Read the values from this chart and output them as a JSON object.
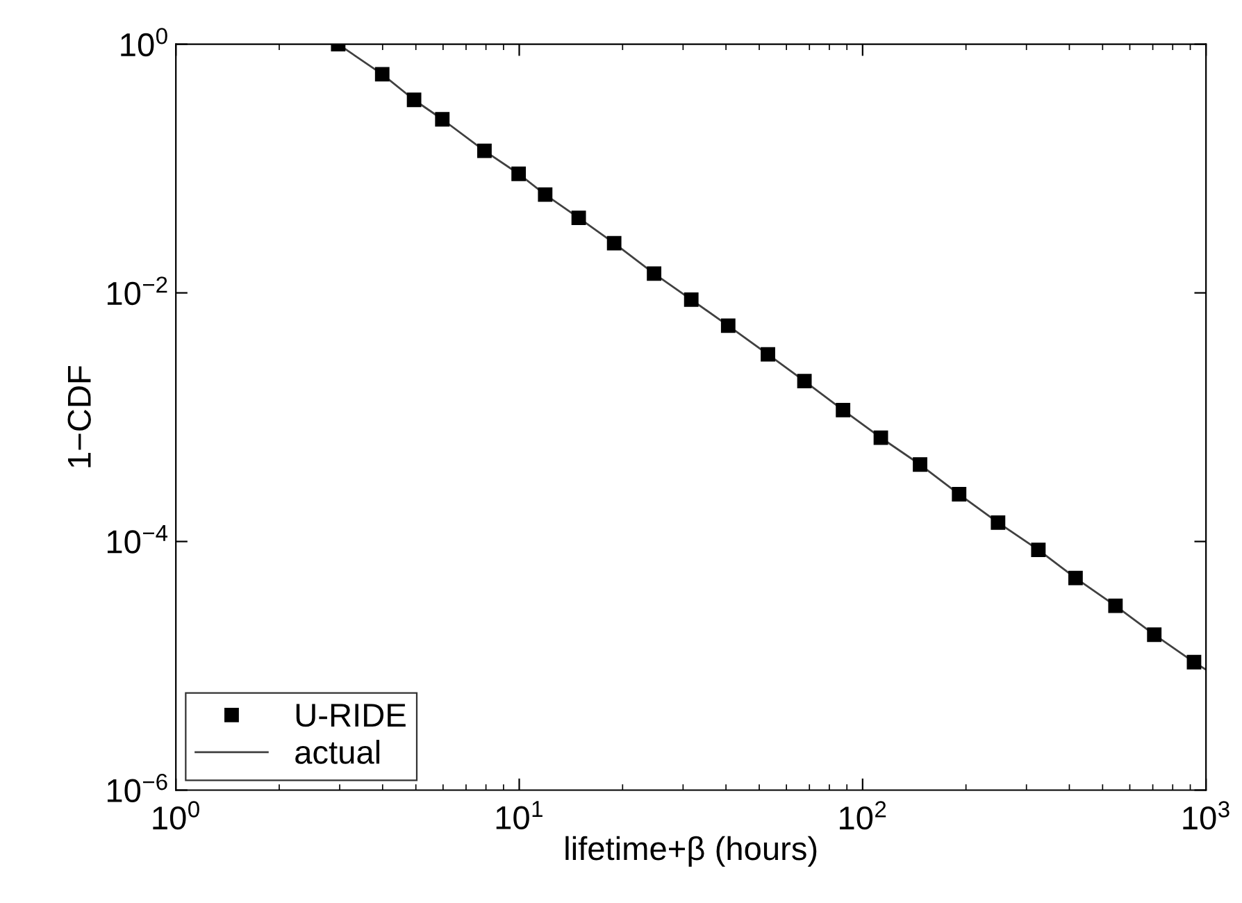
{
  "chart_data": {
    "type": "line",
    "xlabel": "lifetime+β (hours)",
    "ylabel": "1−CDF",
    "log": "xy",
    "xlim": [
      1,
      1000
    ],
    "ylim": [
      1e-06,
      1
    ],
    "xticks": [
      {
        "value": 1,
        "label": "10$^{0}$"
      },
      {
        "value": 10,
        "label": "10$^{1}$"
      },
      {
        "value": 100,
        "label": "10$^{2}$"
      },
      {
        "value": 1000,
        "label": "10$^{3}$"
      }
    ],
    "yticks": [
      {
        "value": 1e-06,
        "label": "10$^{−6}$"
      },
      {
        "value": 0.0001,
        "label": "10$^{−4}$"
      },
      {
        "value": 0.01,
        "label": "10$^{−2}$"
      },
      {
        "value": 1,
        "label": "10$^{0}$"
      }
    ],
    "grid": false,
    "legend": "bottom left",
    "series": [
      {
        "name": "U-RIDE",
        "type": "scatter",
        "marker": "square",
        "color": "#000000",
        "x": [
          2.97,
          3.99,
          4.94,
          5.97,
          7.92,
          9.96,
          11.9,
          14.9,
          18.9,
          24.7,
          31.7,
          40.6,
          53.0,
          67.7,
          87.7,
          113,
          147,
          191,
          248,
          325,
          417,
          545,
          707,
          923
        ],
        "values": [
          1,
          0.574,
          0.357,
          0.249,
          0.139,
          0.0907,
          0.0617,
          0.0401,
          0.0251,
          0.0143,
          0.00883,
          0.00544,
          0.0032,
          0.00195,
          0.00114,
          0.000684,
          0.000416,
          0.00024,
          0.000142,
          8.57e-05,
          5.08e-05,
          3.04e-05,
          1.78e-05,
          1.07e-05
        ]
      },
      {
        "name": "actual",
        "line_style": "solid",
        "color": "#404040",
        "x": [
          2.97,
          3.99,
          4.94,
          5.97,
          7.92,
          9.96,
          11.9,
          14.9,
          18.9,
          24.7,
          31.7,
          40.6,
          53.0,
          67.7,
          87.7,
          113,
          147,
          191,
          248,
          325,
          417,
          545,
          707,
          923,
          1000
        ],
        "values": [
          1,
          0.574,
          0.357,
          0.249,
          0.139,
          0.0907,
          0.0617,
          0.0401,
          0.0251,
          0.0143,
          0.00883,
          0.00544,
          0.0032,
          0.00195,
          0.00114,
          0.000684,
          0.000416,
          0.00024,
          0.000142,
          8.57e-05,
          5.08e-05,
          3.04e-05,
          1.78e-05,
          1.07e-05,
          9.3e-06
        ]
      }
    ]
  }
}
